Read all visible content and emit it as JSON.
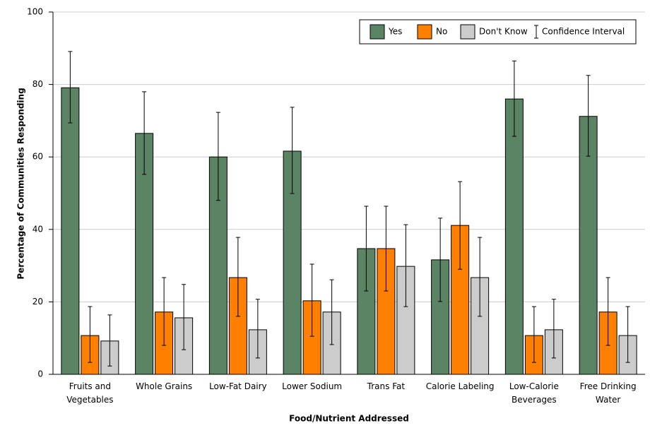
{
  "chart_data": {
    "type": "bar",
    "x_label": "Food/Nutrient Addressed",
    "y_label": "Percentage of Communities Responding",
    "categories": [
      "Fruits and Vegetables",
      "Whole Grains",
      "Low-Fat Dairy",
      "Lower Sodium",
      "Trans Fat",
      "Calorie Labeling",
      "Low-Calorie Beverages",
      "Free Drinking Water"
    ],
    "series": [
      {
        "name": "Yes",
        "color": "#5a8464",
        "values": [
          79.1,
          66.5,
          60,
          61.6,
          34.7,
          31.6,
          76,
          71.2
        ],
        "ci_low": [
          69.4,
          55.2,
          48,
          49.9,
          23,
          20.1,
          65.7,
          60.2
        ],
        "ci_high": [
          89.1,
          78,
          72.3,
          73.7,
          46.4,
          43.1,
          86.5,
          82.5
        ]
      },
      {
        "name": "No",
        "color": "#ff7f00",
        "values": [
          10.7,
          17.2,
          26.7,
          20.3,
          34.7,
          41.1,
          10.7,
          17.2
        ],
        "ci_low": [
          3.3,
          8,
          16,
          10.5,
          23,
          29,
          3.3,
          8
        ],
        "ci_high": [
          18.7,
          26.7,
          37.8,
          30.4,
          46.4,
          53.2,
          18.7,
          26.7
        ]
      },
      {
        "name": "Don't Know",
        "color": "#cccccc",
        "values": [
          9.2,
          15.6,
          12.3,
          17.2,
          29.8,
          26.7,
          12.3,
          10.7
        ],
        "ci_low": [
          2.3,
          6.8,
          4.5,
          8.2,
          18.7,
          16,
          4.5,
          3.3
        ],
        "ci_high": [
          16.4,
          24.8,
          20.7,
          26.1,
          41.3,
          37.8,
          20.7,
          18.7
        ]
      }
    ],
    "confidence_interval_label": "Confidence Interval",
    "ylim": [
      0,
      100
    ],
    "yticks": [
      0,
      20,
      40,
      60,
      80,
      100
    ],
    "grid": true,
    "legend": "top-right"
  }
}
